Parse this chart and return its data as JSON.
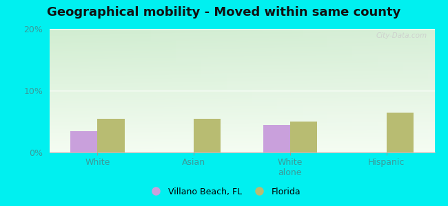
{
  "title": "Geographical mobility - Moved within same county",
  "categories": [
    "White",
    "Asian",
    "White\nalone",
    "Hispanic"
  ],
  "villano_values": [
    3.5,
    0.0,
    4.5,
    0.0
  ],
  "florida_values": [
    5.5,
    5.5,
    5.0,
    6.5
  ],
  "villano_color": "#c9a0dc",
  "florida_color": "#b8bc72",
  "ylim_max": 20,
  "yticks": [
    0,
    10,
    20
  ],
  "ytick_labels": [
    "0%",
    "10%",
    "20%"
  ],
  "legend_villano": "Villano Beach, FL",
  "legend_florida": "Florida",
  "outer_bg": "#00f0f0",
  "bar_width": 0.28,
  "title_fontsize": 13,
  "tick_fontsize": 9,
  "legend_fontsize": 9,
  "label_color": "#3a9a9a",
  "watermark": "City-Data.com"
}
